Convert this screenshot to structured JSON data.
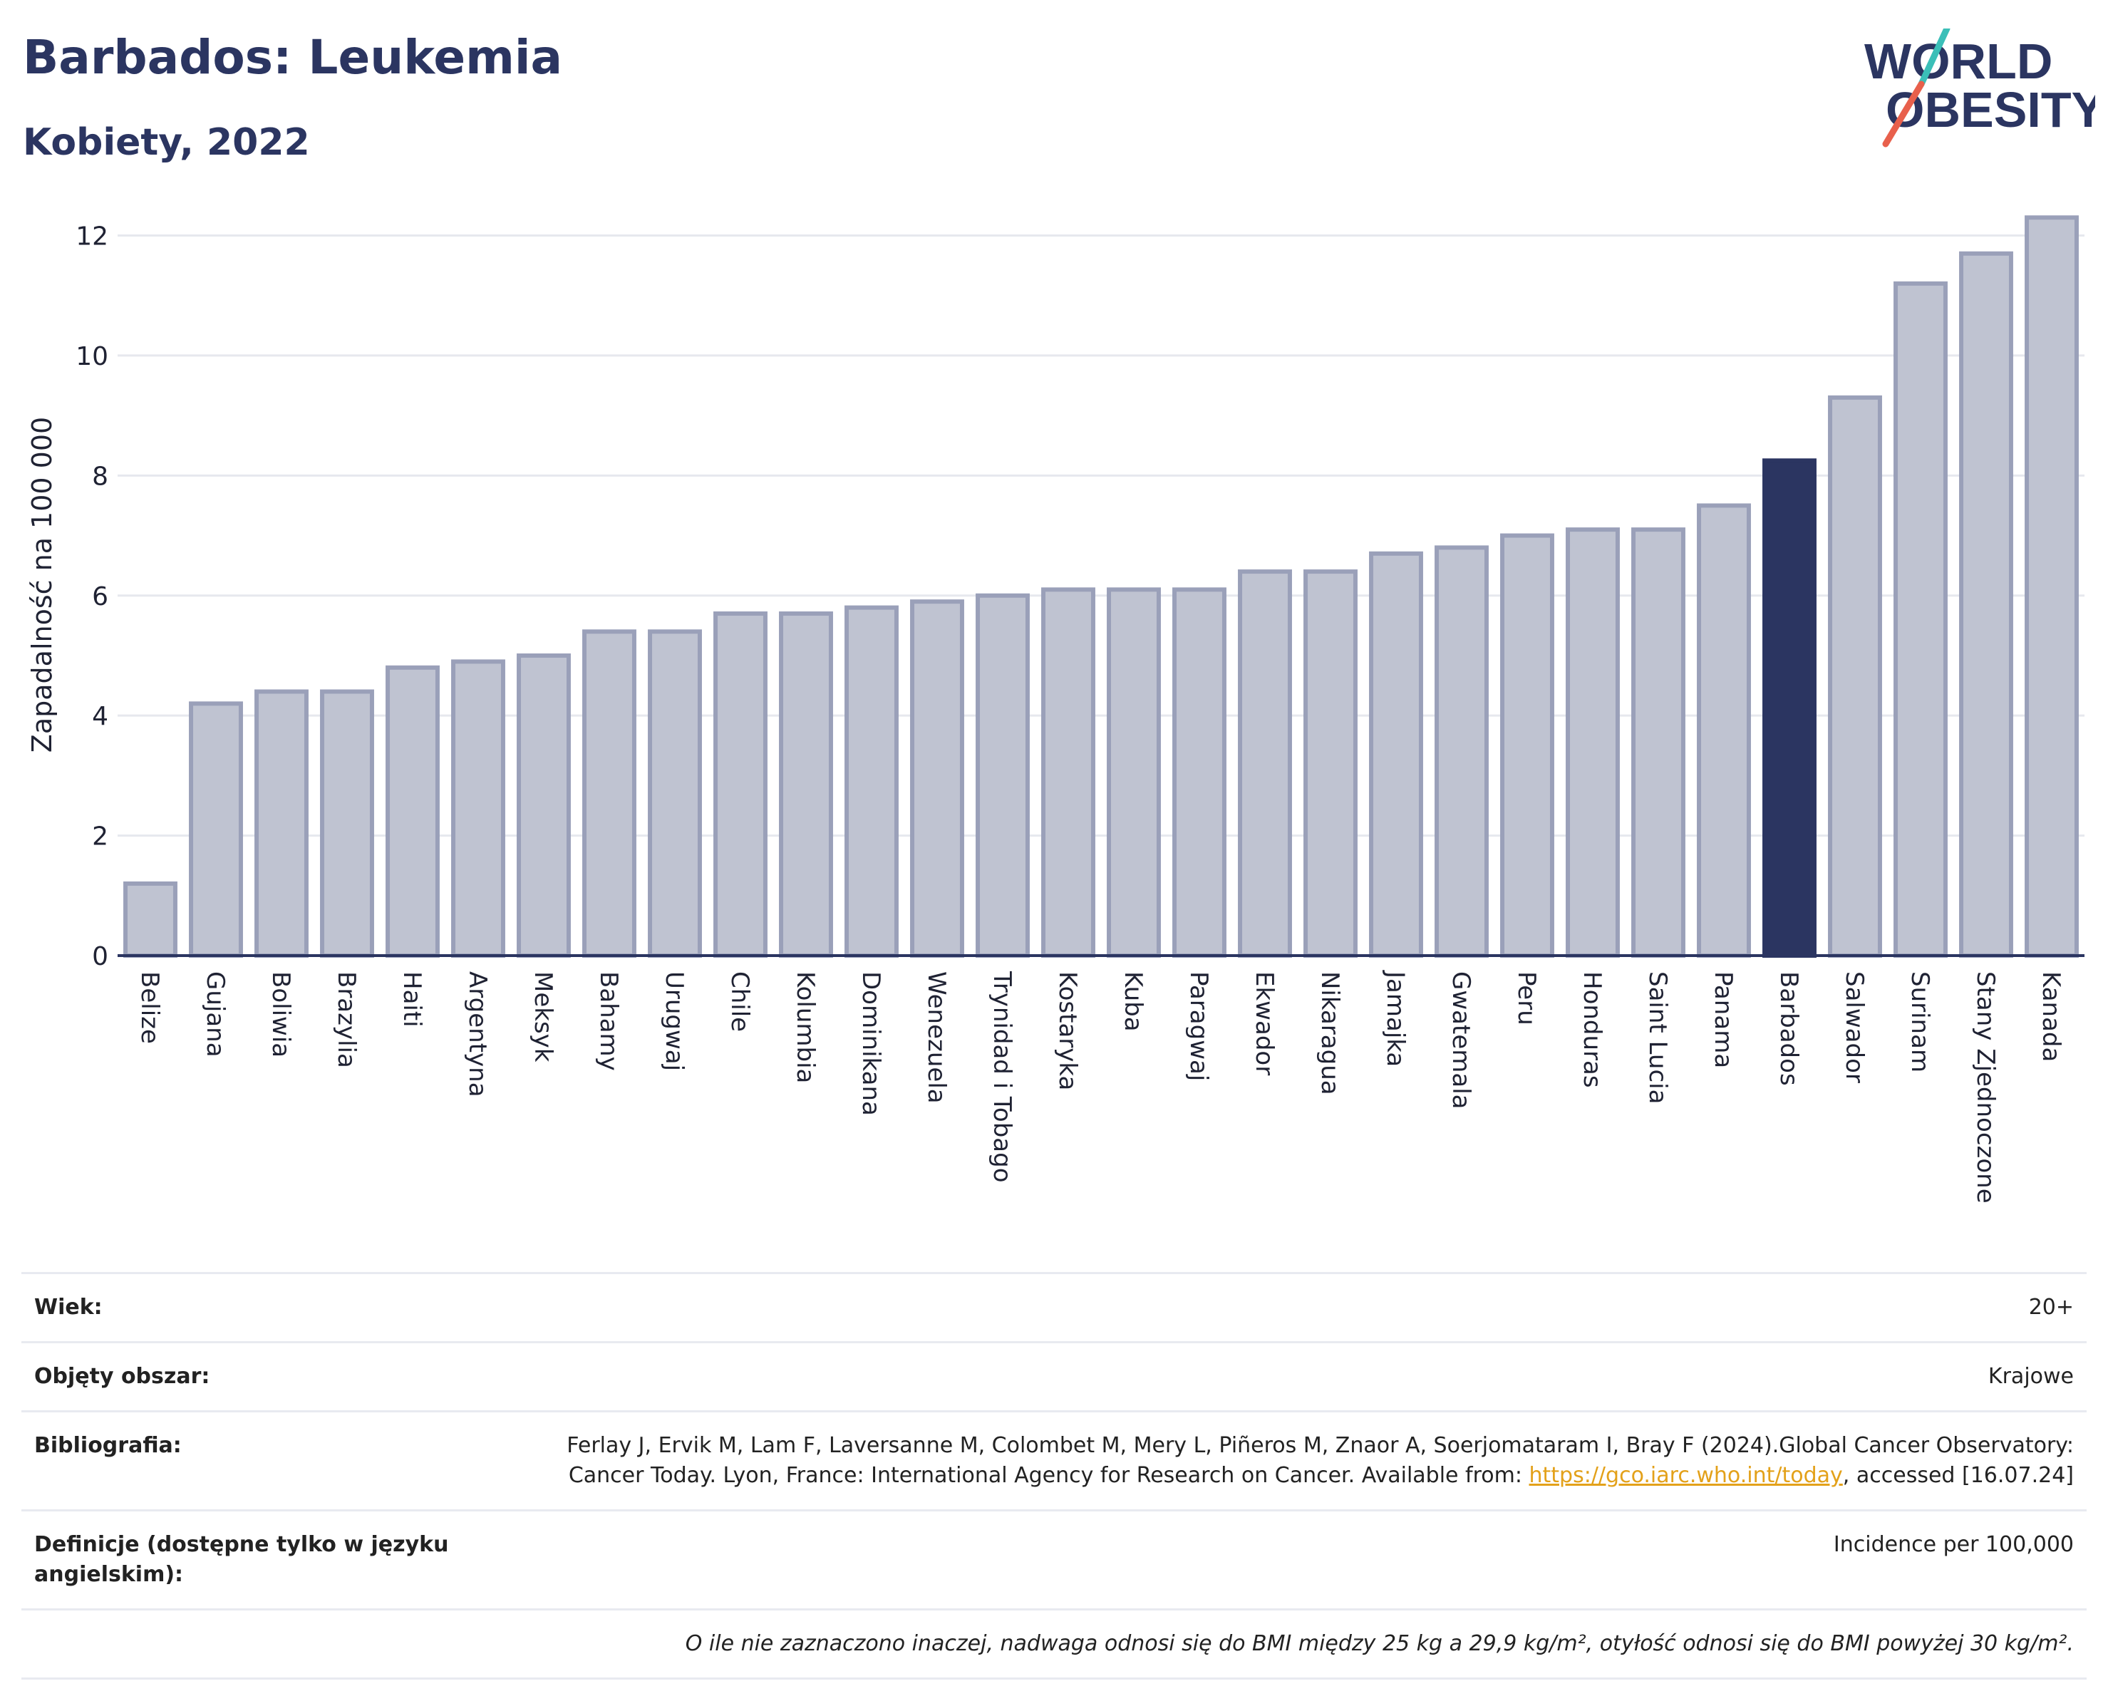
{
  "header": {
    "title": "Barbados: Leukemia",
    "subtitle": "Kobiety, 2022"
  },
  "logo": {
    "line1": "WORLD",
    "line2": "OBESITY",
    "colors": {
      "text": "#2b3561",
      "slash_teal": "#3bbfb8",
      "slash_red": "#e8604c"
    }
  },
  "chart_data": {
    "type": "bar",
    "title": "Barbados: Leukemia",
    "subtitle": "Kobiety, 2022",
    "xlabel": "",
    "ylabel": "Zapadalność na 100 000",
    "ylim": [
      0,
      12.6
    ],
    "yticks": [
      0,
      2,
      4,
      6,
      8,
      10,
      12
    ],
    "grid": true,
    "highlight": "Barbados",
    "colors": {
      "bar": "#bfc3d1",
      "bar_edge": "#9aa0b9",
      "highlight": "#2b3561",
      "grid": "#e6e8ee",
      "axis": "#2b3561"
    },
    "categories": [
      "Belize",
      "Gujana",
      "Boliwia",
      "Brazylia",
      "Haiti",
      "Argentyna",
      "Meksyk",
      "Bahamy",
      "Urugwaj",
      "Chile",
      "Kolumbia",
      "Dominikana",
      "Wenezuela",
      "Trynidad i Tobago",
      "Kostaryka",
      "Kuba",
      "Paragwaj",
      "Ekwador",
      "Nikaragua",
      "Jamajka",
      "Gwatemala",
      "Peru",
      "Honduras",
      "Saint Lucia",
      "Panama",
      "Barbados",
      "Salwador",
      "Surinam",
      "Stany Zjednoczone",
      "Kanada"
    ],
    "values": [
      1.2,
      4.2,
      4.4,
      4.4,
      4.8,
      4.9,
      5.0,
      5.4,
      5.4,
      5.7,
      5.7,
      5.8,
      5.9,
      6.0,
      6.1,
      6.1,
      6.1,
      6.4,
      6.4,
      6.7,
      6.8,
      7.0,
      7.1,
      7.1,
      7.5,
      8.25,
      9.3,
      11.2,
      11.7,
      12.3
    ]
  },
  "meta": {
    "age_label": "Wiek:",
    "age_value": "20+",
    "coverage_label": "Objęty obszar:",
    "coverage_value": "Krajowe",
    "biblio_label": "Bibliografia:",
    "biblio_text_1": "Ferlay J, Ervik M, Lam F, Laversanne M, Colombet M, Mery L, Piñeros M, Znaor A, Soerjomataram I, Bray F (2024).Global Cancer Observatory: Cancer Today. Lyon, France: International Agency for Research on Cancer. Available from: ",
    "biblio_link": "https://gco.iarc.who.int/today",
    "biblio_text_2": ", accessed [16.07.24]",
    "definitions_label": "Definicje (dostępne tylko w języku angielskim):",
    "definitions_value": "Incidence per 100,000",
    "note": "O ile nie zaznaczono inaczej, nadwaga odnosi się do BMI między 25 kg a 29,9 kg/m², otyłość odnosi się do BMI powyżej 30 kg/m²."
  }
}
